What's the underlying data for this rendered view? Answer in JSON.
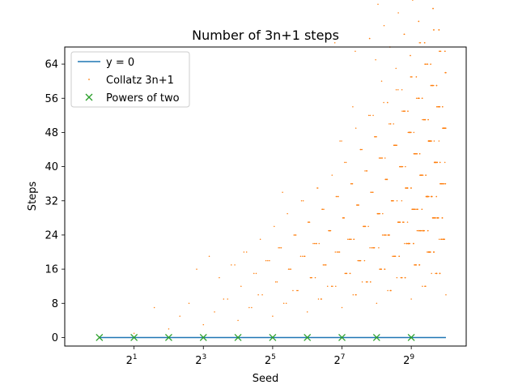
{
  "chart_data": {
    "type": "scatter",
    "title": "Number of 3n+1 steps",
    "xlabel": "Seed",
    "ylabel": "Steps",
    "x_scale": "log2",
    "xlim": [
      0.5,
      1536
    ],
    "ylim": [
      -2,
      68
    ],
    "x_ticks": [
      {
        "value": 2,
        "base": "2",
        "exp": "1"
      },
      {
        "value": 8,
        "base": "2",
        "exp": "3"
      },
      {
        "value": 32,
        "base": "2",
        "exp": "5"
      },
      {
        "value": 128,
        "base": "2",
        "exp": "7"
      },
      {
        "value": 512,
        "base": "2",
        "exp": "9"
      }
    ],
    "y_ticks": [
      0,
      8,
      16,
      24,
      32,
      40,
      48,
      56,
      64
    ],
    "grid": false,
    "legend_position": "top-left",
    "series": [
      {
        "name": "y = 0",
        "kind": "line",
        "color": "#1f77b4",
        "x": [
          1,
          1024
        ],
        "y": [
          0,
          0
        ]
      },
      {
        "name": "Collatz 3n+1",
        "kind": "points",
        "color": "#ff7f0e",
        "x_range": [
          1,
          1024
        ],
        "note_source": "computed steps for each seed n"
      },
      {
        "name": "Powers of two",
        "kind": "x-markers",
        "color": "#2ca02c",
        "x": [
          1,
          2,
          4,
          8,
          16,
          32,
          64,
          128,
          256,
          512
        ],
        "y": [
          0,
          0,
          0,
          0,
          0,
          0,
          0,
          0,
          0,
          0
        ]
      }
    ]
  },
  "colors": {
    "line": "#1f77b4",
    "scatter": "#ff7f0e",
    "powers": "#2ca02c"
  }
}
